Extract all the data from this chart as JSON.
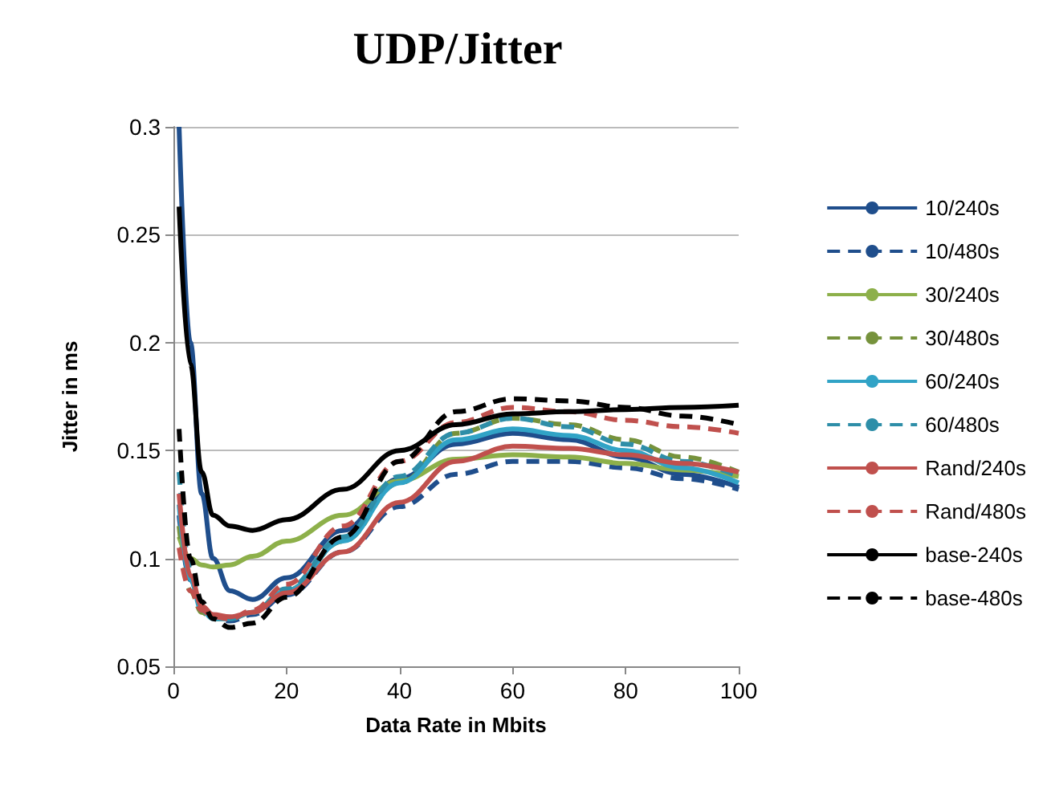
{
  "chart_data": {
    "type": "line",
    "title": "UDP/Jitter",
    "xlabel": "Data Rate in Mbits",
    "ylabel": "Jitter in ms",
    "x": [
      1,
      3,
      5,
      7,
      10,
      14,
      20,
      30,
      40,
      50,
      60,
      70,
      80,
      90,
      100
    ],
    "xlim": [
      0,
      100
    ],
    "xticks": [
      0,
      20,
      40,
      60,
      80,
      100
    ],
    "ylim": [
      0.05,
      0.3
    ],
    "yticks": [
      0.05,
      0.1,
      0.15,
      0.2,
      0.25,
      0.3
    ],
    "grid": "y",
    "legend": "right",
    "marker": "none",
    "series": [
      {
        "name": "10/240s",
        "color": "#1f4e8c",
        "line_style": "solid",
        "values": [
          0.3,
          0.2,
          0.13,
          0.1,
          0.085,
          0.081,
          0.091,
          0.113,
          0.137,
          0.153,
          0.158,
          0.155,
          0.147,
          0.139,
          0.133
        ]
      },
      {
        "name": "10/480s",
        "color": "#1f4e8c",
        "line_style": "dashed",
        "values": [
          0.12,
          0.09,
          0.078,
          0.073,
          0.071,
          0.074,
          0.083,
          0.103,
          0.124,
          0.139,
          0.145,
          0.145,
          0.142,
          0.137,
          0.132
        ]
      },
      {
        "name": "30/240s",
        "color": "#8db04a",
        "line_style": "solid",
        "values": [
          0.11,
          0.1,
          0.097,
          0.096,
          0.097,
          0.101,
          0.108,
          0.12,
          0.136,
          0.146,
          0.148,
          0.147,
          0.144,
          0.141,
          0.138
        ]
      },
      {
        "name": "30/480s",
        "color": "#76923c",
        "line_style": "dashed",
        "values": [
          0.115,
          0.085,
          0.075,
          0.072,
          0.072,
          0.075,
          0.085,
          0.108,
          0.135,
          0.158,
          0.165,
          0.162,
          0.155,
          0.147,
          0.14
        ]
      },
      {
        "name": "60/240s",
        "color": "#31a3c6",
        "line_style": "solid",
        "values": [
          0.125,
          0.09,
          0.076,
          0.072,
          0.072,
          0.075,
          0.085,
          0.108,
          0.135,
          0.155,
          0.16,
          0.157,
          0.15,
          0.142,
          0.135
        ]
      },
      {
        "name": "60/480s",
        "color": "#2e8ea8",
        "line_style": "dashed",
        "values": [
          0.14,
          0.095,
          0.078,
          0.073,
          0.072,
          0.075,
          0.086,
          0.11,
          0.138,
          0.158,
          0.165,
          0.161,
          0.153,
          0.145,
          0.138
        ]
      },
      {
        "name": "Rand/240s",
        "color": "#c0504d",
        "line_style": "solid",
        "values": [
          0.13,
          0.092,
          0.078,
          0.074,
          0.073,
          0.075,
          0.084,
          0.103,
          0.126,
          0.145,
          0.152,
          0.151,
          0.148,
          0.144,
          0.14
        ]
      },
      {
        "name": "Rand/480s",
        "color": "#c0504d",
        "line_style": "dashed",
        "values": [
          0.105,
          0.085,
          0.076,
          0.073,
          0.072,
          0.076,
          0.088,
          0.115,
          0.145,
          0.163,
          0.17,
          0.168,
          0.164,
          0.161,
          0.158
        ]
      },
      {
        "name": "base-240s",
        "color": "#000000",
        "line_style": "solid",
        "values": [
          0.263,
          0.19,
          0.14,
          0.12,
          0.115,
          0.113,
          0.118,
          0.132,
          0.15,
          0.162,
          0.167,
          0.168,
          0.169,
          0.17,
          0.171
        ]
      },
      {
        "name": "base-480s",
        "color": "#000000",
        "line_style": "dashed",
        "values": [
          0.16,
          0.1,
          0.08,
          0.072,
          0.068,
          0.07,
          0.082,
          0.11,
          0.145,
          0.168,
          0.174,
          0.173,
          0.17,
          0.166,
          0.162
        ]
      }
    ]
  }
}
